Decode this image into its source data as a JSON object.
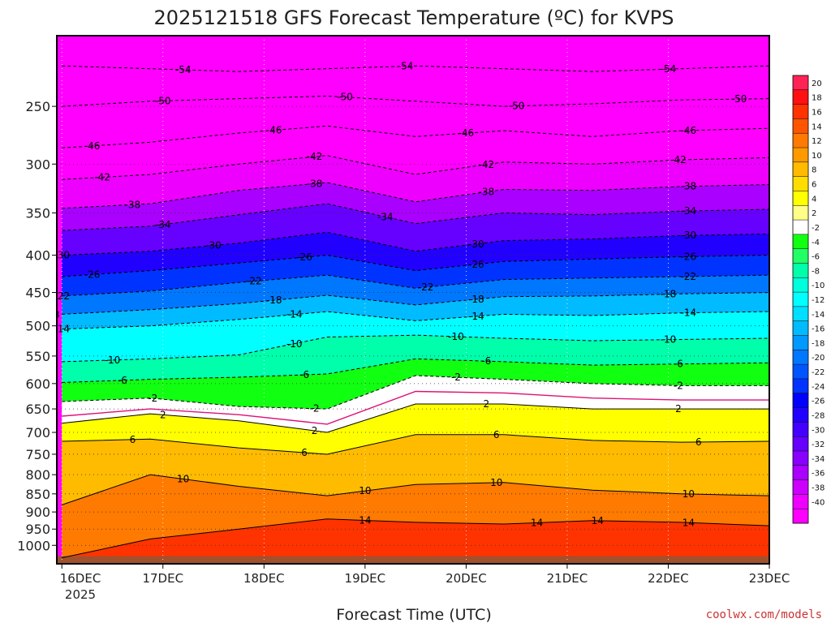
{
  "chart_data": {
    "type": "heatmap",
    "title": "2025121518 GFS Forecast Temperature (ºC) for KVPS",
    "xlabel": "Forecast Time (UTC)",
    "ylabel": "",
    "x_ticks": [
      "16DEC",
      "17DEC",
      "18DEC",
      "19DEC",
      "20DEC",
      "21DEC",
      "22DEC",
      "23DEC"
    ],
    "x_year": "2025",
    "x_range_days": [
      -0.05,
      7.0
    ],
    "y_scale": "log",
    "y_range": [
      1060,
      200
    ],
    "y_ticks": [
      250,
      300,
      350,
      400,
      450,
      500,
      550,
      600,
      650,
      700,
      750,
      800,
      850,
      900,
      950,
      1000
    ],
    "grid": true,
    "colorbar": {
      "labels": [
        20,
        18,
        16,
        14,
        12,
        10,
        8,
        6,
        4,
        2,
        -2,
        -4,
        -6,
        -8,
        -10,
        -12,
        -14,
        -16,
        -18,
        -20,
        -22,
        -24,
        -26,
        -28,
        -30,
        -32,
        -34,
        -36,
        -38,
        -40
      ],
      "colors": [
        "#ff2255",
        "#ff1111",
        "#ff3300",
        "#ff5500",
        "#ff7a00",
        "#ff9900",
        "#ffbb00",
        "#ffdd00",
        "#ffff00",
        "#ffff88",
        "#ffffff",
        "#11ff11",
        "#22ff66",
        "#00ffaa",
        "#00ffdd",
        "#00ffff",
        "#00dfff",
        "#00bbff",
        "#0099ff",
        "#0077ff",
        "#0055ff",
        "#0033ff",
        "#0000ff",
        "#2200ff",
        "#4400ff",
        "#6600ff",
        "#8800ff",
        "#aa00ff",
        "#cc00ff",
        "#ee00ff",
        "#ff00ff"
      ]
    },
    "isotherms": [
      {
        "value": -54,
        "p": [
          220,
          222,
          224,
          222,
          220,
          222,
          224,
          222,
          220
        ],
        "labels": [
          {
            "day": 1.2,
            "text": "-54"
          },
          {
            "day": 3.4,
            "text": "-54"
          },
          {
            "day": 6.0,
            "text": "-54"
          }
        ]
      },
      {
        "value": -50,
        "p": [
          250,
          246,
          244,
          242,
          246,
          250,
          248,
          245,
          244
        ],
        "labels": [
          {
            "day": 1.0,
            "text": "-50"
          },
          {
            "day": 2.8,
            "text": "-50"
          },
          {
            "day": 4.5,
            "text": "-50"
          },
          {
            "day": 6.7,
            "text": "-50"
          }
        ]
      },
      {
        "value": -46,
        "p": [
          285,
          280,
          272,
          266,
          275,
          270,
          275,
          270,
          268
        ],
        "labels": [
          {
            "day": 0.3,
            "text": "-46"
          },
          {
            "day": 2.1,
            "text": "-46"
          },
          {
            "day": 4.0,
            "text": "-46"
          },
          {
            "day": 6.2,
            "text": "-46"
          }
        ]
      },
      {
        "value": -42,
        "p": [
          315,
          310,
          300,
          292,
          310,
          298,
          300,
          296,
          294
        ],
        "labels": [
          {
            "day": 0.4,
            "text": "-42"
          },
          {
            "day": 2.5,
            "text": "-42"
          },
          {
            "day": 4.2,
            "text": "-42"
          },
          {
            "day": 6.1,
            "text": "-42"
          }
        ]
      },
      {
        "value": -38,
        "p": [
          345,
          340,
          326,
          318,
          338,
          325,
          326,
          322,
          320
        ],
        "labels": [
          {
            "day": 0.7,
            "text": "-38"
          },
          {
            "day": 2.5,
            "text": "-38"
          },
          {
            "day": 4.2,
            "text": "-38"
          },
          {
            "day": 6.2,
            "text": "-38"
          }
        ]
      },
      {
        "value": -34,
        "p": [
          370,
          365,
          352,
          340,
          362,
          350,
          352,
          348,
          346
        ],
        "labels": [
          {
            "day": 1.0,
            "text": "-34"
          },
          {
            "day": 3.2,
            "text": "-34"
          },
          {
            "day": 6.2,
            "text": "-34"
          }
        ]
      },
      {
        "value": -30,
        "p": [
          400,
          395,
          385,
          372,
          395,
          382,
          380,
          376,
          374
        ],
        "labels": [
          {
            "day": 0.0,
            "text": "-30"
          },
          {
            "day": 1.5,
            "text": "-30"
          },
          {
            "day": 4.1,
            "text": "-30"
          },
          {
            "day": 6.2,
            "text": "-30"
          }
        ]
      },
      {
        "value": -26,
        "p": [
          428,
          420,
          410,
          400,
          420,
          408,
          405,
          402,
          400
        ],
        "labels": [
          {
            "day": 0.3,
            "text": "-26"
          },
          {
            "day": 2.4,
            "text": "-26"
          },
          {
            "day": 4.1,
            "text": "-26"
          },
          {
            "day": 6.2,
            "text": "-26"
          }
        ]
      },
      {
        "value": -22,
        "p": [
          455,
          448,
          436,
          426,
          444,
          432,
          430,
          428,
          426
        ],
        "labels": [
          {
            "day": 0.0,
            "text": "-22"
          },
          {
            "day": 1.9,
            "text": "-22"
          },
          {
            "day": 3.6,
            "text": "-22"
          },
          {
            "day": 6.2,
            "text": "-22"
          }
        ]
      },
      {
        "value": -18,
        "p": [
          482,
          475,
          466,
          454,
          468,
          456,
          455,
          452,
          450
        ],
        "labels": [
          {
            "day": -0.1,
            "text": "-18"
          },
          {
            "day": 2.1,
            "text": "-18"
          },
          {
            "day": 4.1,
            "text": "-18"
          },
          {
            "day": 6.0,
            "text": "-18"
          }
        ]
      },
      {
        "value": -14,
        "p": [
          505,
          500,
          490,
          478,
          492,
          482,
          484,
          480,
          478
        ],
        "labels": [
          {
            "day": 0.0,
            "text": "-14"
          },
          {
            "day": 2.3,
            "text": "-14"
          },
          {
            "day": 4.1,
            "text": "-14"
          },
          {
            "day": 6.2,
            "text": "-14"
          }
        ]
      },
      {
        "value": -10,
        "p": [
          560,
          555,
          548,
          518,
          515,
          520,
          524,
          522,
          520
        ],
        "labels": [
          {
            "day": 0.5,
            "text": "-10"
          },
          {
            "day": 2.3,
            "text": "-10"
          },
          {
            "day": 3.9,
            "text": "-10"
          },
          {
            "day": 6.0,
            "text": "-10"
          }
        ]
      },
      {
        "value": -6,
        "p": [
          598,
          592,
          588,
          582,
          555,
          560,
          566,
          564,
          562
        ],
        "labels": [
          {
            "day": 0.6,
            "text": "-6"
          },
          {
            "day": 2.4,
            "text": "-6"
          },
          {
            "day": 4.2,
            "text": "-6"
          },
          {
            "day": 6.1,
            "text": "-6"
          }
        ]
      },
      {
        "value": -2,
        "p": [
          635,
          628,
          645,
          650,
          585,
          592,
          600,
          604,
          604
        ],
        "labels": [
          {
            "day": 0.9,
            "text": "-2"
          },
          {
            "day": 2.5,
            "text": "-2"
          },
          {
            "day": 3.9,
            "text": "-2"
          },
          {
            "day": 6.1,
            "text": "-2"
          }
        ]
      },
      {
        "value": 2,
        "p": [
          680,
          660,
          675,
          700,
          640,
          640,
          650,
          650,
          650
        ],
        "labels": [
          {
            "day": 1.0,
            "text": "2"
          },
          {
            "day": 2.5,
            "text": "2"
          },
          {
            "day": 4.2,
            "text": "2"
          },
          {
            "day": 6.1,
            "text": "2"
          }
        ]
      },
      {
        "value": 6,
        "p": [
          720,
          715,
          735,
          750,
          705,
          705,
          718,
          722,
          720
        ],
        "labels": [
          {
            "day": 0.7,
            "text": "6"
          },
          {
            "day": 2.4,
            "text": "6"
          },
          {
            "day": 4.3,
            "text": "6"
          },
          {
            "day": 6.3,
            "text": "6"
          }
        ]
      },
      {
        "value": 10,
        "p": [
          880,
          800,
          830,
          855,
          825,
          820,
          840,
          850,
          855
        ],
        "labels": [
          {
            "day": 1.2,
            "text": "10"
          },
          {
            "day": 3.0,
            "text": "10"
          },
          {
            "day": 4.3,
            "text": "10"
          },
          {
            "day": 6.2,
            "text": "10"
          }
        ]
      },
      {
        "value": 14,
        "p": [
          1040,
          980,
          950,
          920,
          930,
          935,
          925,
          930,
          940
        ],
        "labels": [
          {
            "day": 3.0,
            "text": "14"
          },
          {
            "day": 4.7,
            "text": "14"
          },
          {
            "day": 5.3,
            "text": "14"
          },
          {
            "day": 6.2,
            "text": "14"
          }
        ]
      }
    ],
    "freezing_line": [
      665,
      650,
      662,
      682,
      615,
      618,
      628,
      632,
      632
    ]
  },
  "credit": "coolwx.com/models"
}
